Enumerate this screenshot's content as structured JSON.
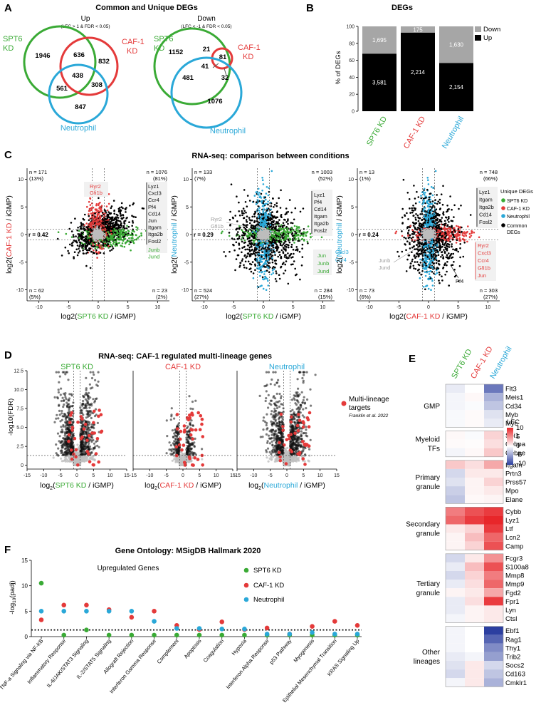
{
  "panels": {
    "A": {
      "letter": "A",
      "title": "Common and Unique DEGs",
      "up": {
        "title": "Up",
        "criteria": "(LFC > 1 & FDR < 0.05)",
        "labels": {
          "spt6": "SPT6",
          "spt6b": "KD",
          "caf": "CAF-1",
          "cafb": "KD",
          "neu": "Neutrophil"
        },
        "counts": {
          "spt6_only": "1946",
          "spt6_caf": "636",
          "caf_only": "832",
          "all": "438",
          "spt6_neu": "561",
          "caf_neu": "308",
          "neu_only": "847"
        }
      },
      "down": {
        "title": "Down",
        "criteria": "(LFC < -1 & FDR < 0.05)",
        "labels": {
          "spt6": "SPT6",
          "spt6b": "KD",
          "caf": "CAF-1",
          "cafb": "KD",
          "neu": "Neutrophil"
        },
        "counts": {
          "spt6_only": "1152",
          "spt6_caf": "21",
          "caf_only": "81",
          "all": "41",
          "spt6_neu": "481",
          "caf_neu": "32",
          "neu_only": "1076"
        }
      }
    },
    "B": {
      "letter": "B",
      "title": "DEGs",
      "legend_down": "Down",
      "legend_up": "Up"
    },
    "C": {
      "letter": "C",
      "title": "RNA-seq: comparison between conditions",
      "legend": {
        "title": "Unique DEGs",
        "spt6": "SPT6 KD",
        "caf": "CAF-1 KD",
        "neu": "Neutrophil",
        "common": "Common",
        "common2": "DEGs"
      },
      "plots": [
        {
          "xlabel_pre": "log2(",
          "xlabel_mid": "SPT6 KD",
          "xlabel_post": " / iGMP)",
          "ylabel_pre": "log2(",
          "ylabel_mid": "CAF-1 KD",
          "ylabel_post": " / iGMP)",
          "r": "r = 0.42",
          "q": {
            "tl": "n = 171",
            "tlp": "(13%)",
            "tr": "n = 1076",
            "trp": "(81%)",
            "bl": "n = 62",
            "blp": "(5%)",
            "br": "n = 23",
            "brp": "(2%)"
          },
          "genes_top": [
            "Ryr2",
            "Gfi1b"
          ],
          "genes_right_black": [
            "Lyz1",
            "Cxcl3",
            "Ccr4",
            "Pf4",
            "Cd14",
            "Jun",
            "Itgam",
            "Itga2b",
            "Fosl2"
          ],
          "genes_right_green": [
            "Junb",
            "Jund"
          ]
        },
        {
          "xlabel_pre": "log2(",
          "xlabel_mid": "SPT6 KD",
          "xlabel_post": " / iGMP)",
          "ylabel_pre": "log2(",
          "ylabel_mid": "Neutrophil",
          "ylabel_post": " / iGMP)",
          "r": "r = 0.29",
          "q": {
            "tl": "n = 133",
            "tlp": "(7%)",
            "tr": "n = 1003",
            "trp": "(52%)",
            "bl": "n = 524",
            "blp": "(27%)",
            "br": "n = 284",
            "brp": "(15%)"
          },
          "genes_left_gray": [
            "Ryr2",
            "Gfi1b"
          ],
          "genes_right_black": [
            "Lyz1",
            "Pf4",
            "Cd14",
            "Itgam",
            "Itga2b",
            "Fosl2"
          ],
          "genes_lower_green": [
            "Jun",
            "Junb",
            "Jund"
          ],
          "genes_lower_blue": [
            "Cxcl3",
            "Ccr4"
          ]
        },
        {
          "xlabel_pre": "log2(",
          "xlabel_mid": "CAF-1 KD",
          "xlabel_post": " / iGMP)",
          "ylabel_pre": "log2(",
          "ylabel_mid": "Neutrophil",
          "ylabel_post": " / iGMP)",
          "r": "r = 0.24",
          "q": {
            "tl": "n = 13",
            "tlp": "(1%)",
            "tr": "n = 748",
            "trp": "(66%)",
            "bl": "n = 73",
            "blp": "(6%)",
            "br": "n = 303",
            "brp": "(27%)"
          },
          "genes_left_gray": [
            "Junb",
            "Jund"
          ],
          "genes_right_black": [
            "Lyz1",
            "Itgam",
            "Itga2b",
            "Cd14",
            "Fosl2"
          ],
          "genes_lower_red": [
            "Ryr2",
            "Cxcl3",
            "Ccr4",
            "Gfi1b",
            "Jun"
          ],
          "gene_pf4": "Pf4"
        }
      ]
    },
    "D": {
      "letter": "D",
      "title": "RNA-seq: CAF-1 regulated multi-lineage genes",
      "ylabel": "-log10(FDR)",
      "plots": [
        {
          "title": "SPT6 KD",
          "xlabel_pre": "log",
          "xlabel_sub": "2",
          "xlabel_open": "(",
          "xlabel_mid": "SPT6 KD",
          "xlabel_post": " / iGMP)"
        },
        {
          "title": "CAF-1 KD",
          "xlabel_pre": "log",
          "xlabel_sub": "2",
          "xlabel_open": "(",
          "xlabel_mid": "CAF-1 KD",
          "xlabel_post": " / iGMP)"
        },
        {
          "title": "Neutrophil",
          "xlabel_pre": "log",
          "xlabel_sub": "2",
          "xlabel_open": "(",
          "xlabel_mid": "Neutrophil",
          "xlabel_post": " / iGMP)"
        }
      ],
      "legend": {
        "line1": "Multi-lineage",
        "line2": "targets",
        "cite": "Franklin et al. 2022"
      }
    },
    "E": {
      "letter": "E",
      "columns": [
        "SPT6 KD",
        "CAF-1 KD",
        "Neutrophil"
      ],
      "legend_title": "LFC",
      "legend_ticks": [
        "10",
        "5",
        "0",
        "-5",
        "-10"
      ],
      "groups": [
        {
          "label": [
            "GMP"
          ],
          "genes": [
            "Flt3",
            "Meis1",
            "Cd34",
            "Myb",
            "Myc"
          ],
          "values": [
            [
              -1,
              0,
              -7
            ],
            [
              -0.5,
              0.3,
              -4
            ],
            [
              -0.5,
              -0.2,
              -3
            ],
            [
              -0.3,
              0.2,
              -1.5
            ],
            [
              -0.3,
              0.2,
              -1
            ]
          ]
        },
        {
          "label": [
            "Myeloid",
            "TFs"
          ],
          "genes": [
            "Spi1",
            "Cebpa",
            "Cebpe"
          ],
          "values": [
            [
              0.3,
              -0.2,
              2
            ],
            [
              0.2,
              0.1,
              1.5
            ],
            [
              -0.5,
              0.3,
              2.5
            ]
          ]
        },
        {
          "label": [
            "Primary",
            "granule"
          ],
          "genes": [
            "Itgam",
            "Prtn3",
            "Prss57",
            "Mpo",
            "Elane"
          ],
          "values": [
            [
              2.5,
              1.5,
              4
            ],
            [
              -2,
              1,
              1
            ],
            [
              -1.5,
              0.5,
              2
            ],
            [
              -2.5,
              0.5,
              1
            ],
            [
              -3,
              0.3,
              0.5
            ]
          ]
        },
        {
          "label": [
            "Secondary",
            "granule"
          ],
          "genes": [
            "Cybb",
            "Lyz1",
            "Ltf",
            "Lcn2",
            "Camp"
          ],
          "values": [
            [
              6,
              8,
              9
            ],
            [
              7,
              9,
              10
            ],
            [
              1,
              2,
              9
            ],
            [
              0.5,
              3,
              7
            ],
            [
              0.5,
              2,
              8
            ]
          ]
        },
        {
          "label": [
            "Tertiary",
            "granule"
          ],
          "genes": [
            "Fcgr3",
            "S100a8",
            "Mmp8",
            "Mmp9",
            "Fgd2",
            "Fpr1",
            "Lyn",
            "Ctsl"
          ],
          "values": [
            [
              -2,
              1,
              5
            ],
            [
              -1,
              3,
              8
            ],
            [
              -2,
              2,
              6
            ],
            [
              -1,
              1.5,
              7
            ],
            [
              0.5,
              1,
              4
            ],
            [
              -1,
              1.5,
              9
            ],
            [
              -1,
              0.5,
              1
            ],
            [
              -0.5,
              0.5,
              1
            ]
          ]
        },
        {
          "label": [
            "Other",
            "lineages"
          ],
          "genes": [
            "Ebf1",
            "Rag1",
            "Thy1",
            "Trib2",
            "Socs2",
            "Cd163",
            "Cmklr1"
          ],
          "values": [
            [
              -0.5,
              0,
              -10
            ],
            [
              -0.5,
              0,
              -8
            ],
            [
              -0.5,
              0,
              -6
            ],
            [
              -1,
              -0.5,
              -5
            ],
            [
              -1.5,
              1,
              -2
            ],
            [
              -2,
              1,
              -3
            ],
            [
              -0.5,
              1,
              -4
            ]
          ]
        }
      ]
    },
    "F": {
      "letter": "F",
      "title": "Gene Ontology: MSigDB Hallmark 2020",
      "subtitle": "Upregulated Genes",
      "ylabel_pre": "-log",
      "ylabel_sub": "10",
      "ylabel_post": "(padj)"
    }
  },
  "chart_data": [
    {
      "type": "bar",
      "panel": "B",
      "title": "DEGs",
      "ylabel": "% of DEGs",
      "categories": [
        "SPT6 KD",
        "CAF-1 KD",
        "Neutrophil"
      ],
      "series": [
        {
          "name": "Up",
          "counts": [
            3581,
            2214,
            2154
          ],
          "labels": [
            "3,581",
            "2,214",
            "2,154"
          ],
          "color": "#000000"
        },
        {
          "name": "Down",
          "counts": [
            1695,
            175,
            1630
          ],
          "labels": [
            "1,695",
            "175",
            "1,630"
          ],
          "color": "#a6a6a6"
        }
      ],
      "yticks": [
        "0",
        "20",
        "40",
        "60",
        "80",
        "100"
      ],
      "ylim": [
        0,
        100
      ],
      "category_colors": [
        "#3aaa35",
        "#e43a3a",
        "#2aa8d8"
      ]
    },
    {
      "type": "scatter",
      "panel": "C",
      "plots": 3,
      "xlim": [
        -12,
        12
      ],
      "ylim": [
        -12,
        12
      ],
      "xticks": [
        "-10",
        "-5",
        "0",
        "5",
        "10"
      ],
      "yticks": [
        "10",
        "5",
        "0",
        "-5",
        "-10"
      ],
      "r_values": [
        0.42,
        0.29,
        0.24
      ]
    },
    {
      "type": "scatter",
      "panel": "D",
      "subtype": "volcano",
      "plots": 3,
      "xlim": [
        -15,
        15
      ],
      "ylim": [
        -0.5,
        12.5
      ],
      "xticks": [
        "-15",
        "-10",
        "-5",
        "0",
        "5",
        "10",
        "15"
      ],
      "yticks": [
        "0",
        "2.5",
        "5.0",
        "7.5",
        "10.0",
        "12.5"
      ],
      "fdr_threshold": 1.3,
      "lfc_threshold": 1
    },
    {
      "type": "heatmap",
      "panel": "E",
      "colorbar": [
        -10,
        10
      ]
    },
    {
      "type": "scatter",
      "panel": "F",
      "title": "Gene Ontology: MSigDB Hallmark 2020",
      "categories": [
        "TNF-a Signaling via NF-KB",
        "Inflammatory Response",
        "IL-6/JAK/STAT3 Signaling",
        "IL-2/STAT5 Signaling",
        "Allograft Rejection",
        "Interferon Gamma Response",
        "Complement",
        "Apoptosis",
        "Coagulation",
        "Hypoxia",
        "Interferon Alpha Response",
        "p53 Pathway",
        "Myogenesis",
        "Epithelial Mesenchymal Transition",
        "KRAS Signaling Up"
      ],
      "series": [
        {
          "name": "SPT6 KD",
          "color": "#3aaa35",
          "values": [
            10.5,
            0.3,
            1.3,
            0.3,
            0.3,
            0.3,
            0.3,
            0.3,
            0.3,
            0.3,
            0.3,
            0.3,
            0.3,
            0.3,
            0.3
          ]
        },
        {
          "name": "CAF-1 KD",
          "color": "#e43a3a",
          "values": [
            3.3,
            6.2,
            6.2,
            5.3,
            3.8,
            5.0,
            2.2,
            1.4,
            2.9,
            1.4,
            1.7,
            0.5,
            2.0,
            3.0,
            2.2
          ]
        },
        {
          "name": "Neutrophil",
          "color": "#2aa8d8",
          "values": [
            5.0,
            5.0,
            5.0,
            5.0,
            5.0,
            3.0,
            1.6,
            1.6,
            1.5,
            1.5,
            0.5,
            0.5,
            0.8,
            0.5,
            0.5
          ]
        }
      ],
      "threshold": 1.3,
      "yticks": [
        "0",
        "5",
        "10",
        "15"
      ],
      "ylim": [
        0,
        15
      ]
    }
  ]
}
